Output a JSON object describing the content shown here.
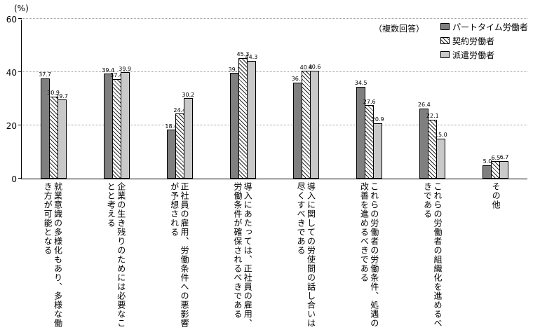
{
  "chart_data": {
    "type": "bar",
    "title": "",
    "ylabel": "(%)",
    "note": "（複数回答）",
    "ylim": [
      0,
      60
    ],
    "yticks": [
      0,
      20,
      40,
      60
    ],
    "grid": "horizontal-dotted",
    "legend_position": "top-right",
    "categories": [
      "就業意識の多様化もあり、多様な働き方が可能となる",
      "企業の生き残りのためには必要なことと考える",
      "正社員の雇用、労働条件への悪影響が予想される",
      "導入にあたっては、正社員の雇用、労働条件が確保されるべきである",
      "導入に関しての労使間の話し合いは尽くすべきである",
      "これらの労働者の労働条件、処遇の改善を進めるべきである",
      "これらの労働者の組織化を進めるべきである",
      "その他"
    ],
    "series": [
      {
        "name": "パートタイム労働者",
        "style": "solid-dark-gray",
        "color": "#7f7f7f",
        "values": [
          37.7,
          39.4,
          18.4,
          39.7,
          36.1,
          34.5,
          26.4,
          5.0
        ]
      },
      {
        "name": "契約労働者",
        "style": "diagonal-hatch",
        "color": "#ffffff",
        "values": [
          30.9,
          37.4,
          24.4,
          45.3,
          40.4,
          27.6,
          22.1,
          6.5
        ]
      },
      {
        "name": "派遣労働者",
        "style": "solid-light-gray",
        "color": "#c9c9c9",
        "values": [
          29.7,
          39.9,
          30.2,
          44.3,
          40.6,
          20.9,
          15.0,
          6.7
        ]
      }
    ]
  }
}
